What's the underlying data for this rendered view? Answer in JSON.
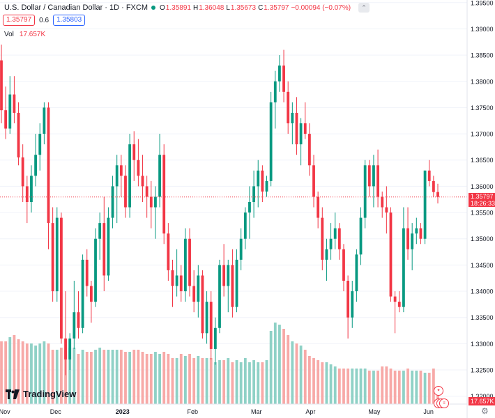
{
  "header": {
    "symbol": "U.S. Dollar / Canadian Dollar · 1D · FXCM",
    "ohlc": [
      {
        "key": "O",
        "value": "1.35891"
      },
      {
        "key": "H",
        "value": "1.36048"
      },
      {
        "key": "L",
        "value": "1.35673"
      },
      {
        "key": "C",
        "value": "1.35797"
      }
    ],
    "change": "−0.00094 (−0.07%)",
    "sell_price": "1.35797",
    "spread": "0.6",
    "buy_price": "1.35803",
    "volume_label": "Vol",
    "volume_value": "17.657K"
  },
  "logo_text": "TradingView",
  "price_tag": {
    "value": "1.35797",
    "countdown": "18:26:33"
  },
  "volume_tag": "17.657K",
  "colors": {
    "up": "#089981",
    "down": "#f23645",
    "vol_up": "#8fd1c6",
    "vol_down": "#f7a9a7",
    "grid": "#f0f3fa"
  },
  "chart_data": {
    "type": "candlestick",
    "x_axis_labels": [
      "Nov",
      "Dec",
      "2023",
      "Feb",
      "Mar",
      "Apr",
      "May",
      "Jun"
    ],
    "y_ticks": [
      "1.39500",
      "1.39000",
      "1.38500",
      "1.38000",
      "1.37500",
      "1.37000",
      "1.36500",
      "1.36000",
      "1.35500",
      "1.35000",
      "1.34500",
      "1.34000",
      "1.33500",
      "1.33000",
      "1.32500",
      "1.32000"
    ],
    "ylim": [
      1.3185,
      1.3955
    ],
    "last_price": 1.35797,
    "candles": [
      [
        1.384,
        1.387,
        1.372,
        1.3745
      ],
      [
        1.3745,
        1.379,
        1.369,
        1.371
      ],
      [
        1.371,
        1.381,
        1.37,
        1.3775
      ],
      [
        1.3775,
        1.381,
        1.372,
        1.374
      ],
      [
        1.374,
        1.376,
        1.364,
        1.3655
      ],
      [
        1.3655,
        1.368,
        1.357,
        1.36
      ],
      [
        1.36,
        1.362,
        1.353,
        1.357
      ],
      [
        1.357,
        1.364,
        1.355,
        1.362
      ],
      [
        1.362,
        1.37,
        1.36,
        1.366
      ],
      [
        1.366,
        1.372,
        1.363,
        1.37
      ],
      [
        1.37,
        1.376,
        1.368,
        1.375
      ],
      [
        1.375,
        1.376,
        1.348,
        1.353
      ],
      [
        1.353,
        1.356,
        1.338,
        1.34
      ],
      [
        1.34,
        1.356,
        1.338,
        1.354
      ],
      [
        1.354,
        1.355,
        1.33,
        1.331
      ],
      [
        1.331,
        1.34,
        1.324,
        1.327
      ],
      [
        1.327,
        1.332,
        1.325,
        1.331
      ],
      [
        1.331,
        1.342,
        1.329,
        1.336
      ],
      [
        1.336,
        1.34,
        1.331,
        1.333
      ],
      [
        1.333,
        1.347,
        1.332,
        1.346
      ],
      [
        1.346,
        1.348,
        1.339,
        1.341
      ],
      [
        1.341,
        1.342,
        1.334,
        1.338
      ],
      [
        1.338,
        1.352,
        1.337,
        1.35
      ],
      [
        1.35,
        1.355,
        1.346,
        1.353
      ],
      [
        1.353,
        1.358,
        1.34,
        1.343
      ],
      [
        1.343,
        1.356,
        1.342,
        1.354
      ],
      [
        1.354,
        1.362,
        1.352,
        1.36
      ],
      [
        1.36,
        1.366,
        1.353,
        1.364
      ],
      [
        1.364,
        1.366,
        1.358,
        1.362
      ],
      [
        1.362,
        1.364,
        1.354,
        1.356
      ],
      [
        1.356,
        1.37,
        1.354,
        1.368
      ],
      [
        1.368,
        1.3705,
        1.361,
        1.365
      ],
      [
        1.365,
        1.369,
        1.36,
        1.362
      ],
      [
        1.362,
        1.366,
        1.357,
        1.36
      ],
      [
        1.36,
        1.362,
        1.354,
        1.358
      ],
      [
        1.358,
        1.361,
        1.352,
        1.356
      ],
      [
        1.356,
        1.36,
        1.35,
        1.358
      ],
      [
        1.358,
        1.37,
        1.356,
        1.366
      ],
      [
        1.366,
        1.368,
        1.349,
        1.351
      ],
      [
        1.351,
        1.353,
        1.342,
        1.344
      ],
      [
        1.344,
        1.346,
        1.337,
        1.341
      ],
      [
        1.341,
        1.348,
        1.339,
        1.343
      ],
      [
        1.343,
        1.345,
        1.338,
        1.34
      ],
      [
        1.34,
        1.352,
        1.338,
        1.35
      ],
      [
        1.35,
        1.352,
        1.339,
        1.341
      ],
      [
        1.341,
        1.344,
        1.336,
        1.338
      ],
      [
        1.338,
        1.345,
        1.335,
        1.343
      ],
      [
        1.343,
        1.344,
        1.331,
        1.332
      ],
      [
        1.332,
        1.34,
        1.33,
        1.338
      ],
      [
        1.338,
        1.34,
        1.327,
        1.329
      ],
      [
        1.329,
        1.335,
        1.326,
        1.333
      ],
      [
        1.333,
        1.346,
        1.332,
        1.345
      ],
      [
        1.345,
        1.349,
        1.339,
        1.341
      ],
      [
        1.341,
        1.346,
        1.336,
        1.345
      ],
      [
        1.345,
        1.348,
        1.335,
        1.337
      ],
      [
        1.337,
        1.348,
        1.336,
        1.346
      ],
      [
        1.346,
        1.352,
        1.344,
        1.35
      ],
      [
        1.35,
        1.356,
        1.348,
        1.355
      ],
      [
        1.355,
        1.36,
        1.35,
        1.357
      ],
      [
        1.357,
        1.363,
        1.354,
        1.36
      ],
      [
        1.36,
        1.365,
        1.356,
        1.363
      ],
      [
        1.363,
        1.364,
        1.357,
        1.359
      ],
      [
        1.359,
        1.362,
        1.358,
        1.361
      ],
      [
        1.361,
        1.378,
        1.36,
        1.376
      ],
      [
        1.376,
        1.382,
        1.371,
        1.38
      ],
      [
        1.38,
        1.385,
        1.378,
        1.383
      ],
      [
        1.383,
        1.386,
        1.376,
        1.378
      ],
      [
        1.378,
        1.38,
        1.37,
        1.372
      ],
      [
        1.372,
        1.376,
        1.368,
        1.374
      ],
      [
        1.374,
        1.377,
        1.366,
        1.368
      ],
      [
        1.368,
        1.373,
        1.364,
        1.372
      ],
      [
        1.372,
        1.376,
        1.369,
        1.37
      ],
      [
        1.37,
        1.372,
        1.362,
        1.364
      ],
      [
        1.364,
        1.366,
        1.356,
        1.358
      ],
      [
        1.358,
        1.359,
        1.352,
        1.354
      ],
      [
        1.354,
        1.356,
        1.344,
        1.346
      ],
      [
        1.346,
        1.35,
        1.342,
        1.348
      ],
      [
        1.348,
        1.353,
        1.346,
        1.35
      ],
      [
        1.35,
        1.355,
        1.348,
        1.352
      ],
      [
        1.352,
        1.353,
        1.346,
        1.348
      ],
      [
        1.348,
        1.349,
        1.34,
        1.342
      ],
      [
        1.342,
        1.343,
        1.331,
        1.335
      ],
      [
        1.335,
        1.342,
        1.333,
        1.34
      ],
      [
        1.34,
        1.348,
        1.338,
        1.347
      ],
      [
        1.347,
        1.356,
        1.345,
        1.354
      ],
      [
        1.354,
        1.365,
        1.352,
        1.364
      ],
      [
        1.364,
        1.365,
        1.358,
        1.36
      ],
      [
        1.36,
        1.366,
        1.356,
        1.364
      ],
      [
        1.364,
        1.367,
        1.356,
        1.358
      ],
      [
        1.358,
        1.359,
        1.354,
        1.356
      ],
      [
        1.356,
        1.36,
        1.351,
        1.355
      ],
      [
        1.355,
        1.356,
        1.338,
        1.339
      ],
      [
        1.339,
        1.34,
        1.332,
        1.338
      ],
      [
        1.338,
        1.34,
        1.336,
        1.337
      ],
      [
        1.337,
        1.356,
        1.336,
        1.352
      ],
      [
        1.352,
        1.356,
        1.346,
        1.348
      ],
      [
        1.348,
        1.353,
        1.344,
        1.351
      ],
      [
        1.351,
        1.354,
        1.349,
        1.352
      ],
      [
        1.352,
        1.353,
        1.349,
        1.35
      ],
      [
        1.35,
        1.363,
        1.349,
        1.363
      ],
      [
        1.363,
        1.365,
        1.36,
        1.361
      ],
      [
        1.361,
        1.362,
        1.358,
        1.3589
      ],
      [
        1.35891,
        1.36048,
        1.35673,
        1.35797
      ]
    ],
    "volumes": [
      0.3,
      0.3,
      0.32,
      0.33,
      0.31,
      0.3,
      0.29,
      0.29,
      0.28,
      0.29,
      0.3,
      0.29,
      0.26,
      0.26,
      0.27,
      0.26,
      0.27,
      0.27,
      0.24,
      0.26,
      0.25,
      0.25,
      0.26,
      0.27,
      0.26,
      0.26,
      0.26,
      0.26,
      0.26,
      0.25,
      0.25,
      0.26,
      0.26,
      0.25,
      0.24,
      0.24,
      0.25,
      0.24,
      0.25,
      0.24,
      0.22,
      0.22,
      0.24,
      0.23,
      0.24,
      0.22,
      0.23,
      0.22,
      0.22,
      0.22,
      0.2,
      0.21,
      0.21,
      0.22,
      0.2,
      0.21,
      0.2,
      0.22,
      0.2,
      0.21,
      0.2,
      0.2,
      0.21,
      0.35,
      0.39,
      0.38,
      0.36,
      0.33,
      0.3,
      0.29,
      0.28,
      0.26,
      0.23,
      0.22,
      0.21,
      0.2,
      0.2,
      0.19,
      0.18,
      0.17,
      0.17,
      0.17,
      0.17,
      0.17,
      0.17,
      0.17,
      0.16,
      0.16,
      0.16,
      0.18,
      0.18,
      0.17,
      0.16,
      0.16,
      0.16,
      0.17,
      0.16,
      0.16,
      0.16,
      0.15,
      0.15,
      0.17,
      0.08
    ]
  }
}
